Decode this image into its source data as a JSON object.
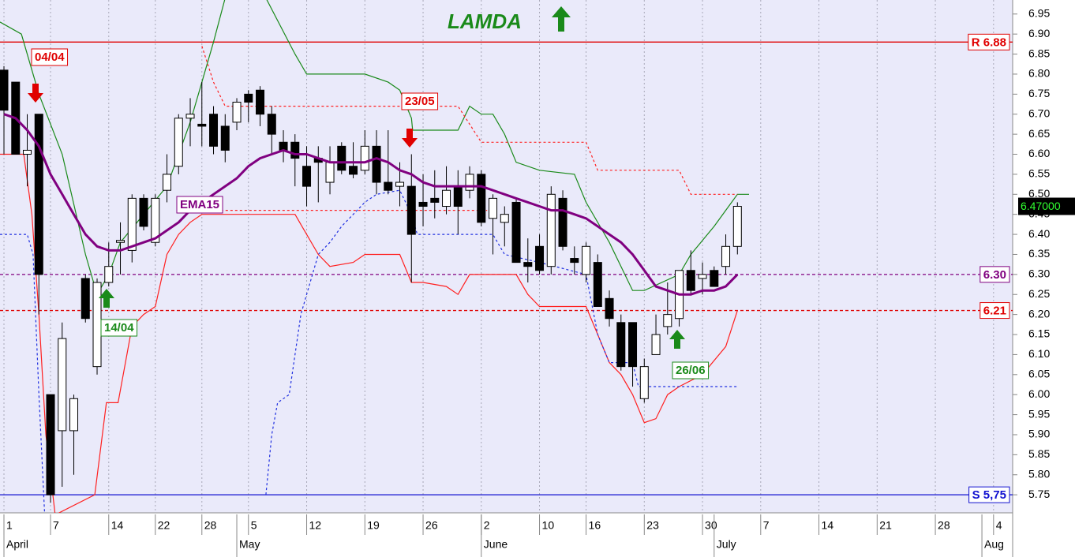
{
  "chart_data": {
    "type": "candlestick",
    "title": "LAMDA",
    "title_color": "#1a8a1a",
    "xlim": [
      -0.34,
      86.64
    ],
    "ylim": [
      5.705,
      6.985
    ],
    "grid": true,
    "yticks": [
      5.75,
      {
        "value": 5.8,
        "label": "5.80"
      },
      5.85,
      {
        "value": 5.9,
        "label": "5.90"
      },
      5.95,
      {
        "value": 6,
        "label": "6.00"
      },
      6.05,
      {
        "value": 6.1,
        "label": "6.10"
      },
      6.15,
      {
        "value": 6.2,
        "label": "6.20"
      },
      6.25,
      {
        "value": 6.3,
        "label": "6.30"
      },
      6.35,
      {
        "value": 6.4,
        "label": "6.40"
      },
      6.45,
      {
        "value": 6.5,
        "label": "6.50"
      },
      6.55,
      {
        "value": 6.6,
        "label": "6.60"
      },
      6.65,
      {
        "value": 6.7,
        "label": "6.70"
      },
      6.75,
      {
        "value": 6.8,
        "label": "6.80"
      },
      6.85,
      {
        "value": 6.9,
        "label": "6.90"
      },
      6.95
    ],
    "xticks": [
      {
        "value": 0,
        "label": "1"
      },
      {
        "value": 4,
        "label": "7"
      },
      {
        "value": 9,
        "label": "14"
      },
      {
        "value": 13,
        "label": "22"
      },
      {
        "value": 17,
        "label": "28"
      },
      {
        "value": 21,
        "label": "5"
      },
      {
        "value": 26,
        "label": "12"
      },
      {
        "value": 31,
        "label": "19"
      },
      {
        "value": 36,
        "label": "26"
      },
      {
        "value": 41,
        "label": "2"
      },
      {
        "value": 46,
        "label": "10"
      },
      {
        "value": 50,
        "label": "16"
      },
      {
        "value": 55,
        "label": "23"
      },
      {
        "value": 60,
        "label": "30"
      },
      {
        "value": 65,
        "label": "7"
      },
      {
        "value": 70,
        "label": "14"
      },
      {
        "value": 75,
        "label": "21"
      },
      {
        "value": 80,
        "label": "28"
      },
      {
        "value": 85,
        "label": "4"
      }
    ],
    "months": [
      {
        "value": 0,
        "label": "April"
      },
      {
        "value": 20,
        "label": "May"
      },
      {
        "value": 41,
        "label": "June"
      },
      {
        "value": 61,
        "label": "July"
      },
      {
        "value": 84,
        "label": "Aug"
      }
    ],
    "x": [
      0,
      1,
      2,
      3,
      4,
      5,
      6,
      7,
      8,
      9,
      10,
      11,
      12,
      13,
      14,
      15,
      16,
      17,
      18,
      19,
      20,
      21,
      22,
      23,
      24,
      25,
      26,
      27,
      28,
      29,
      30,
      31,
      32,
      33,
      34,
      35,
      36,
      37,
      38,
      39,
      40,
      41,
      42,
      43,
      44,
      45,
      46,
      47,
      48,
      49,
      50,
      51,
      52,
      53,
      54,
      55,
      56,
      57,
      58,
      59,
      60,
      61,
      62,
      63
    ],
    "open": [
      6.81,
      6.78,
      6.6,
      6.7,
      6,
      5.91,
      5.91,
      6.29,
      6.07,
      6.28,
      6.38,
      6.36,
      6.49,
      6.38,
      6.51,
      6.57,
      6.69,
      6.675,
      6.7,
      6.67,
      6.68,
      6.75,
      6.76,
      6.7,
      6.63,
      6.63,
      6.57,
      6.59,
      6.53,
      6.62,
      6.57,
      6.56,
      6.62,
      6.53,
      6.52,
      6.52,
      6.48,
      6.49,
      6.47,
      6.52,
      6.51,
      6.55,
      6.44,
      6.43,
      6.48,
      6.33,
      6.37,
      6.32,
      6.49,
      6.34,
      6.3,
      6.33,
      6.24,
      6.18,
      6.18,
      5.99,
      6.1,
      6.17,
      6.19,
      6.31,
      6.29,
      6.31,
      6.32,
      6.37
    ],
    "high": [
      6.82,
      6.78,
      6.7,
      6.7,
      6,
      6.18,
      6,
      6.3,
      6.29,
      6.38,
      6.43,
      6.5,
      6.5,
      6.5,
      6.6,
      6.7,
      6.74,
      6.78,
      6.72,
      6.7,
      6.74,
      6.76,
      6.77,
      6.72,
      6.66,
      6.65,
      6.62,
      6.62,
      6.62,
      6.63,
      6.63,
      6.66,
      6.66,
      6.66,
      6.58,
      6.6,
      6.55,
      6.56,
      6.57,
      6.56,
      6.57,
      6.56,
      6.5,
      6.47,
      6.49,
      6.39,
      6.4,
      6.52,
      6.51,
      6.37,
      6.38,
      6.35,
      6.26,
      6.2,
      6.18,
      6.09,
      6.2,
      6.28,
      6.31,
      6.36,
      6.33,
      6.32,
      6.4,
      6.48
    ],
    "low": [
      6.6,
      6.6,
      6.52,
      6.2,
      5.73,
      5.77,
      5.8,
      6.18,
      6.05,
      6.27,
      6.3,
      6.33,
      6.41,
      6.37,
      6.48,
      6.55,
      6.62,
      6.62,
      6.6,
      6.58,
      6.66,
      6.68,
      6.67,
      6.6,
      6.58,
      6.52,
      6.47,
      6.48,
      6.5,
      6.55,
      6.54,
      6.55,
      6.5,
      6.5,
      6.47,
      6.28,
      6.42,
      6.44,
      6.45,
      6.4,
      6.49,
      6.42,
      6.35,
      6.37,
      6.33,
      6.28,
      6.3,
      6.3,
      6.36,
      6.3,
      6.28,
      6.22,
      6.17,
      6.06,
      6.02,
      5.98,
      6.1,
      6.15,
      6.17,
      6.25,
      6.25,
      6.27,
      6.3,
      6.35
    ],
    "close": [
      6.71,
      6.6,
      6.61,
      6.3,
      5.75,
      6.14,
      5.99,
      6.19,
      6.28,
      6.32,
      6.385,
      6.49,
      6.42,
      6.49,
      6.55,
      6.69,
      6.7,
      6.67,
      6.62,
      6.61,
      6.73,
      6.73,
      6.7,
      6.65,
      6.61,
      6.59,
      6.52,
      6.58,
      6.58,
      6.56,
      6.55,
      6.62,
      6.53,
      6.51,
      6.53,
      6.4,
      6.47,
      6.48,
      6.51,
      6.47,
      6.55,
      6.43,
      6.49,
      6.45,
      6.33,
      6.32,
      6.31,
      6.5,
      6.37,
      6.33,
      6.37,
      6.22,
      6.19,
      6.07,
      6.07,
      6.07,
      6.15,
      6.2,
      6.31,
      6.26,
      6.3,
      6.27,
      6.37,
      6.47
    ],
    "ema": {
      "color": "#800080",
      "values": [
        6.7,
        6.69,
        6.66,
        6.62,
        6.55,
        6.5,
        6.45,
        6.4,
        6.37,
        6.36,
        6.36,
        6.37,
        6.38,
        6.39,
        6.41,
        6.43,
        6.46,
        6.48,
        6.5,
        6.52,
        6.54,
        6.57,
        6.59,
        6.6,
        6.61,
        6.6,
        6.6,
        6.59,
        6.58,
        6.58,
        6.58,
        6.58,
        6.59,
        6.58,
        6.56,
        6.55,
        6.53,
        6.52,
        6.52,
        6.52,
        6.52,
        6.52,
        6.51,
        6.5,
        6.49,
        6.48,
        6.47,
        6.46,
        6.46,
        6.45,
        6.44,
        6.42,
        6.4,
        6.38,
        6.35,
        6.31,
        6.27,
        6.26,
        6.25,
        6.25,
        6.26,
        6.26,
        6.27,
        6.3
      ]
    },
    "series": [
      {
        "color": "#1a8a1a",
        "style": "solid",
        "x": [
          -0.34,
          1.5,
          3,
          5,
          7,
          8,
          9,
          10,
          12,
          14,
          15,
          16,
          17,
          18,
          19,
          21,
          22.5,
          25,
          26,
          28,
          31,
          33,
          34,
          35,
          35.1,
          39,
          40,
          41,
          42,
          43,
          44,
          46,
          49,
          50,
          52,
          54,
          55,
          58,
          59,
          61,
          62,
          63,
          64
        ],
        "values": [
          6.93,
          6.9,
          6.75,
          6.6,
          6.35,
          6.25,
          6.3,
          6.38,
          6.45,
          6.52,
          6.6,
          6.68,
          6.78,
          6.88,
          6.99,
          null,
          6.99,
          6.85,
          6.8,
          6.8,
          6.8,
          6.78,
          6.76,
          6.69,
          6.66,
          6.66,
          6.72,
          6.7,
          6.7,
          6.65,
          6.58,
          6.56,
          6.55,
          6.48,
          6.38,
          6.26,
          6.26,
          6.3,
          6.35,
          6.42,
          6.46,
          6.5,
          6.5
        ]
      },
      {
        "color": "#ff2020",
        "style": "solid",
        "x": [
          -0.34,
          1.7,
          2.4,
          3,
          3.6,
          4.4,
          7.8,
          8.8,
          9.8,
          11,
          12,
          13,
          14,
          15,
          16,
          17,
          20,
          25,
          26,
          27,
          28,
          30,
          31,
          34,
          35,
          36,
          38,
          39,
          40,
          44,
          45,
          46,
          50,
          51,
          52,
          53,
          54,
          55,
          56,
          57,
          58,
          60,
          62,
          63
        ],
        "values": [
          6.6,
          6.6,
          6.45,
          6.2,
          5.9,
          5.7,
          5.75,
          5.98,
          5.98,
          6.17,
          6.2,
          6.22,
          6.35,
          6.4,
          6.43,
          6.45,
          6.45,
          6.45,
          6.4,
          6.35,
          6.32,
          6.33,
          6.35,
          6.35,
          6.28,
          6.28,
          6.27,
          6.25,
          6.3,
          6.3,
          6.25,
          6.22,
          6.22,
          6.15,
          6.08,
          6.05,
          6,
          5.93,
          5.94,
          6,
          6.02,
          6.05,
          6.12,
          6.21
        ]
      },
      {
        "color": "#ff2020",
        "style": "dashed",
        "x": [
          17,
          18,
          19,
          34,
          39,
          41,
          50,
          51,
          58,
          59,
          63
        ],
        "values": [
          6.87,
          6.78,
          6.72,
          6.72,
          6.72,
          6.63,
          6.63,
          6.56,
          6.56,
          6.5,
          6.5
        ]
      },
      {
        "color": "#ff2020",
        "style": "dashed",
        "x": [
          17,
          41.5
        ],
        "values": [
          6.46,
          6.46
        ]
      },
      {
        "color": "#2030e0",
        "style": "dashed",
        "x": [
          -0.34,
          2,
          2.5,
          3,
          3.5,
          null,
          22.5,
          23,
          23.5,
          24.5,
          25,
          25.5,
          26,
          27,
          28,
          29,
          30,
          31,
          32,
          34,
          35,
          35.5,
          42,
          43,
          46,
          50,
          51,
          52,
          54,
          54.5,
          63
        ],
        "values": [
          6.4,
          6.4,
          6.35,
          6,
          5.7,
          null,
          5.75,
          5.9,
          5.98,
          6,
          6.1,
          6.2,
          6.25,
          6.35,
          6.38,
          6.42,
          6.45,
          6.48,
          6.5,
          6.51,
          6.45,
          6.4,
          6.4,
          6.35,
          6.33,
          6.3,
          6.15,
          6.08,
          6.08,
          6.02,
          6.02
        ]
      }
    ],
    "levels": [
      {
        "label": "R 6.88",
        "value": 6.88,
        "color": "#e00000",
        "style": "solid"
      },
      {
        "label": "6.30",
        "value": 6.3,
        "color": "#800080",
        "style": "dashed"
      },
      {
        "label": "6.21",
        "value": 6.21,
        "color": "#e00000",
        "style": "dashed"
      },
      {
        "label": "S 5,75",
        "value": 5.75,
        "color": "#1010d0",
        "style": "solid"
      }
    ],
    "last": {
      "value": 6.47,
      "label": "6.47000"
    },
    "annotations": [
      "04/04",
      "14/04",
      "EMA15",
      "23/05",
      "26/06"
    ]
  }
}
